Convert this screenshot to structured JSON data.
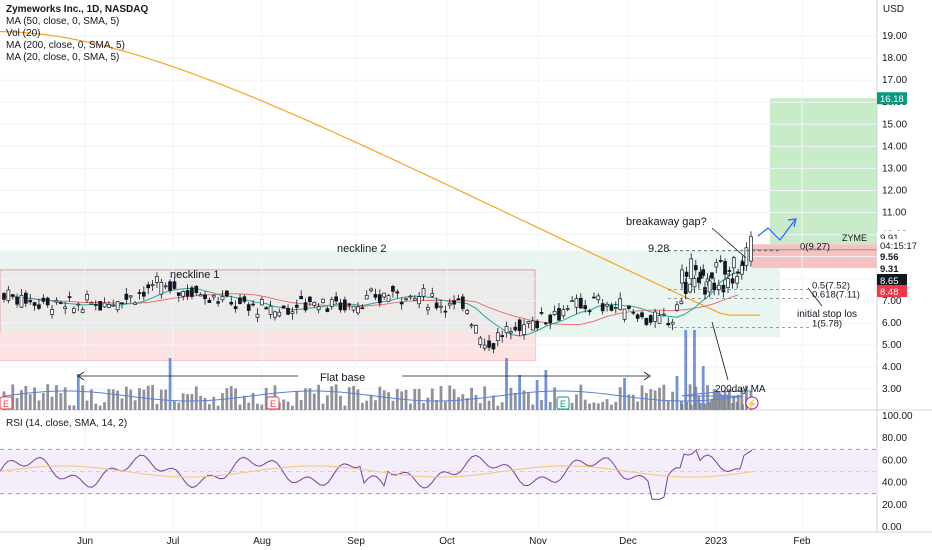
{
  "legend": {
    "title": "Zymeworks Inc., 1D, NASDAQ",
    "indicators": [
      "MA (50, close, 0, SMA, 5)",
      "Vol (20)",
      "MA (200, close, 0, SMA, 5)",
      "MA (20, close, 0, SMA, 5)"
    ]
  },
  "currency": "USD",
  "rsi_legend": "RSI (14, close, SMA, 14, 2)",
  "colors": {
    "up": "#26a69a",
    "down": "#ef5350",
    "candle": "#131722",
    "ma200": "#f5a623",
    "ma50": "#e57373",
    "ma20": "#26a69a",
    "volume": "#7b7f8a",
    "volume_spike": "#5b7fd6",
    "rsi": "#7b3fa0",
    "rsi_ma": "#f3c77a",
    "target_zone": "#c8ecc8",
    "stop_zone": "#f5c2c2",
    "base_box": "#e6f4ee",
    "base_box_low": "#f9dede"
  },
  "chart_data": {
    "type": "candlestick",
    "title": "Zymeworks Inc., 1D, NASDAQ",
    "symbol": "ZYME",
    "time_axis": [
      "Jun",
      "Jul",
      "Aug",
      "Sep",
      "Oct",
      "Nov",
      "Dec",
      "2023",
      "Feb"
    ],
    "price_axis": {
      "ticks": [
        "19.00",
        "18.00",
        "17.00",
        "16.00",
        "15.00",
        "14.00",
        "13.00",
        "12.00",
        "11.00",
        "10.00",
        "9.00",
        "8.00",
        "7.00",
        "6.00",
        "5.00",
        "4.00",
        "3.00"
      ],
      "range": [
        2.0,
        20.0
      ]
    },
    "rsi_axis": {
      "ticks": [
        "100.00",
        "80.00",
        "60.00",
        "40.00",
        "20.00",
        "0.00"
      ],
      "range": [
        0,
        100
      ],
      "bands": [
        30,
        70
      ]
    },
    "price_labels": [
      {
        "text": "16.18",
        "value": 16.18,
        "color": "#089981"
      },
      {
        "text": "9.91",
        "value": 9.91,
        "color": "#ffffff"
      },
      {
        "text": "04:15:17",
        "value": 9.91,
        "color": "#ffffff"
      },
      {
        "text": "9.56",
        "value": 9.56,
        "color": "#131722"
      },
      {
        "text": "9.31",
        "value": 9.31,
        "color": "#131722"
      },
      {
        "text": "8.65",
        "value": 8.65,
        "color": "#ffffff"
      },
      {
        "text": "8.48",
        "value": 8.48,
        "color": "#f23645"
      }
    ],
    "ticker_tag": "ZYME",
    "fib_levels": [
      {
        "label": "0(9.27)",
        "value": 9.27
      },
      {
        "label": "0.5(7.52)",
        "value": 7.52
      },
      {
        "label": "0.618(7.11)",
        "value": 7.11
      },
      {
        "label": "1(5.78)",
        "value": 5.78
      }
    ],
    "annotations": [
      "neckline 1",
      "neckline 2",
      "Flat base",
      "breakaway gap?",
      "9.28",
      "initial stop los",
      "200day MA"
    ],
    "events": [
      {
        "symbol": "E",
        "kind": "earnings"
      },
      {
        "symbol": "E",
        "kind": "earnings"
      },
      {
        "symbol": "E",
        "kind": "earnings"
      },
      {
        "symbol": "⚡",
        "kind": "news"
      }
    ],
    "key_levels": {
      "neckline_1": 8.4,
      "neckline_2": 9.28,
      "base_low": 4.3,
      "target": 16.18,
      "entry": 9.31,
      "stop": 8.48
    }
  }
}
